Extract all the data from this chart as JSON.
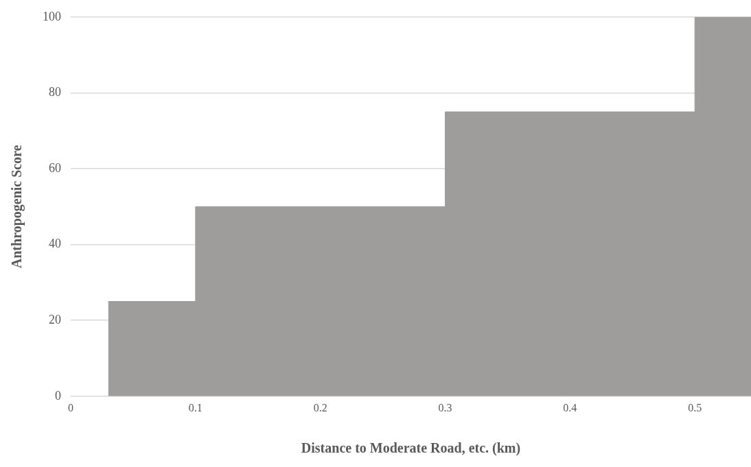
{
  "chart_data": {
    "type": "area",
    "xlabel": "Distance to Moderate Road, etc. (km)",
    "ylabel": "Anthropogenic Score",
    "series": [
      {
        "color": "#9e9d9b",
        "x": [
          0.03,
          0.1,
          0.1,
          0.3,
          0.3,
          0.5,
          0.5,
          0.545
        ],
        "values": [
          25,
          25,
          50,
          50,
          75,
          75,
          100,
          100
        ]
      }
    ],
    "xlim": [
      0,
      0.545
    ],
    "xticks": [
      0,
      0.1,
      0.2,
      0.3,
      0.4,
      0.5
    ],
    "ylim": [
      0,
      100
    ],
    "yticks": [
      0,
      20,
      40,
      60,
      80,
      100
    ],
    "grid": "y",
    "legend": false
  }
}
